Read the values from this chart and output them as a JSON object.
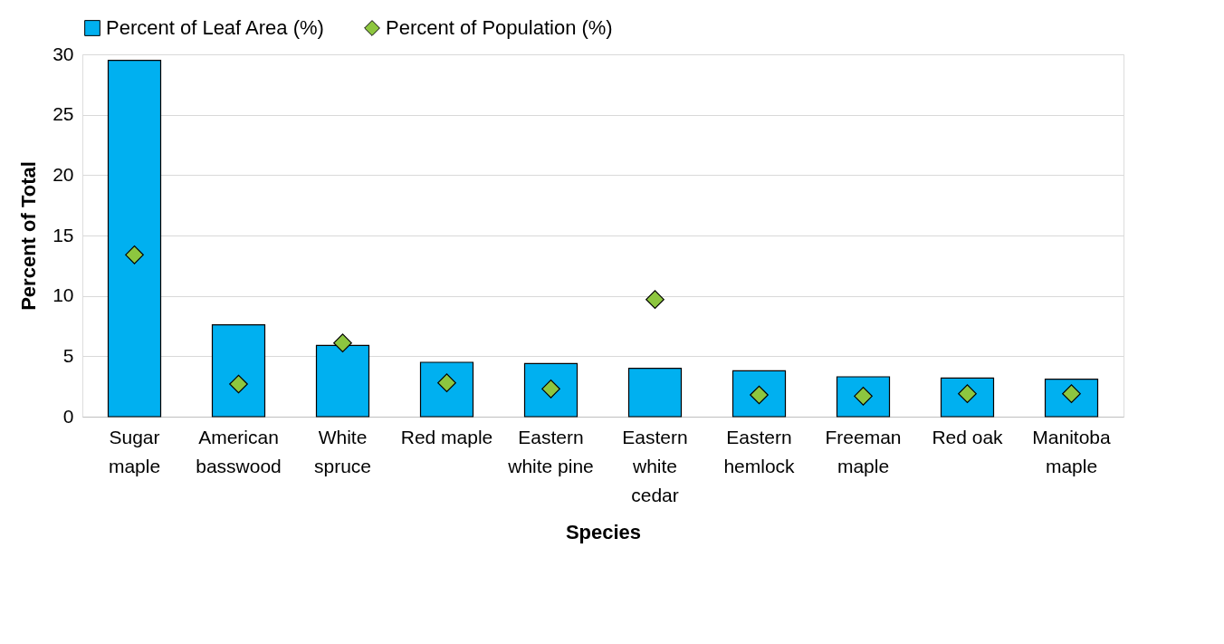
{
  "chart_data": {
    "type": "bar",
    "xlabel": "Species",
    "ylabel": "Percent of Total",
    "categories": [
      "Sugar maple",
      "American basswood",
      "White spruce",
      "Red maple",
      "Eastern white pine",
      "Eastern white cedar",
      "Eastern hemlock",
      "Freeman maple",
      "Red oak",
      "Manitoba maple"
    ],
    "series": [
      {
        "name": "Percent of Leaf Area (%)",
        "color": "#00b0f0",
        "values": [
          29.5,
          7.6,
          5.9,
          4.5,
          4.4,
          4.0,
          3.8,
          3.3,
          3.2,
          3.1
        ]
      },
      {
        "name": "Percent of Population (%)",
        "type": "scatter",
        "marker": "diamond",
        "color": "#8dc63f",
        "values": [
          13.4,
          2.7,
          6.1,
          2.8,
          2.3,
          9.7,
          1.8,
          1.7,
          1.9,
          1.9
        ]
      }
    ],
    "ylim": [
      0,
      30
    ],
    "yticks": [
      0,
      5,
      10,
      15,
      20,
      25,
      30
    ],
    "grid": "y",
    "legend": "top"
  }
}
